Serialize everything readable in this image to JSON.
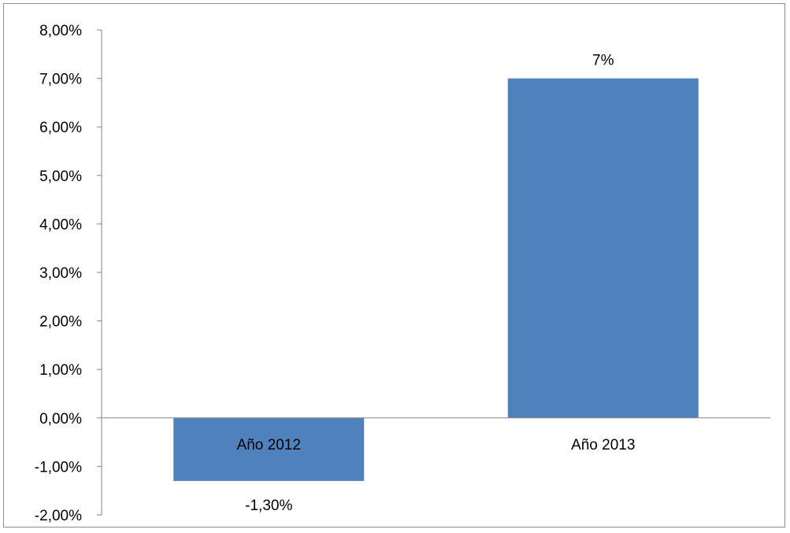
{
  "chart_data": {
    "type": "bar",
    "categories": [
      "Año 2012",
      "Año 2013"
    ],
    "values": [
      -1.3,
      7.0
    ],
    "data_labels": [
      "-1,30%",
      "7%"
    ],
    "ylim": [
      -2,
      8
    ],
    "yticks": [
      8,
      7,
      6,
      5,
      4,
      3,
      2,
      1,
      0,
      -1,
      -2
    ],
    "ytick_labels": [
      "8,00%",
      "7,00%",
      "6,00%",
      "5,00%",
      "4,00%",
      "3,00%",
      "2,00%",
      "1,00%",
      "0,00%",
      "-1,00%",
      "-2,00%"
    ],
    "grid": false,
    "legend": "none",
    "bar_color": "#4f81bd",
    "title": "",
    "xlabel": "",
    "ylabel": ""
  }
}
